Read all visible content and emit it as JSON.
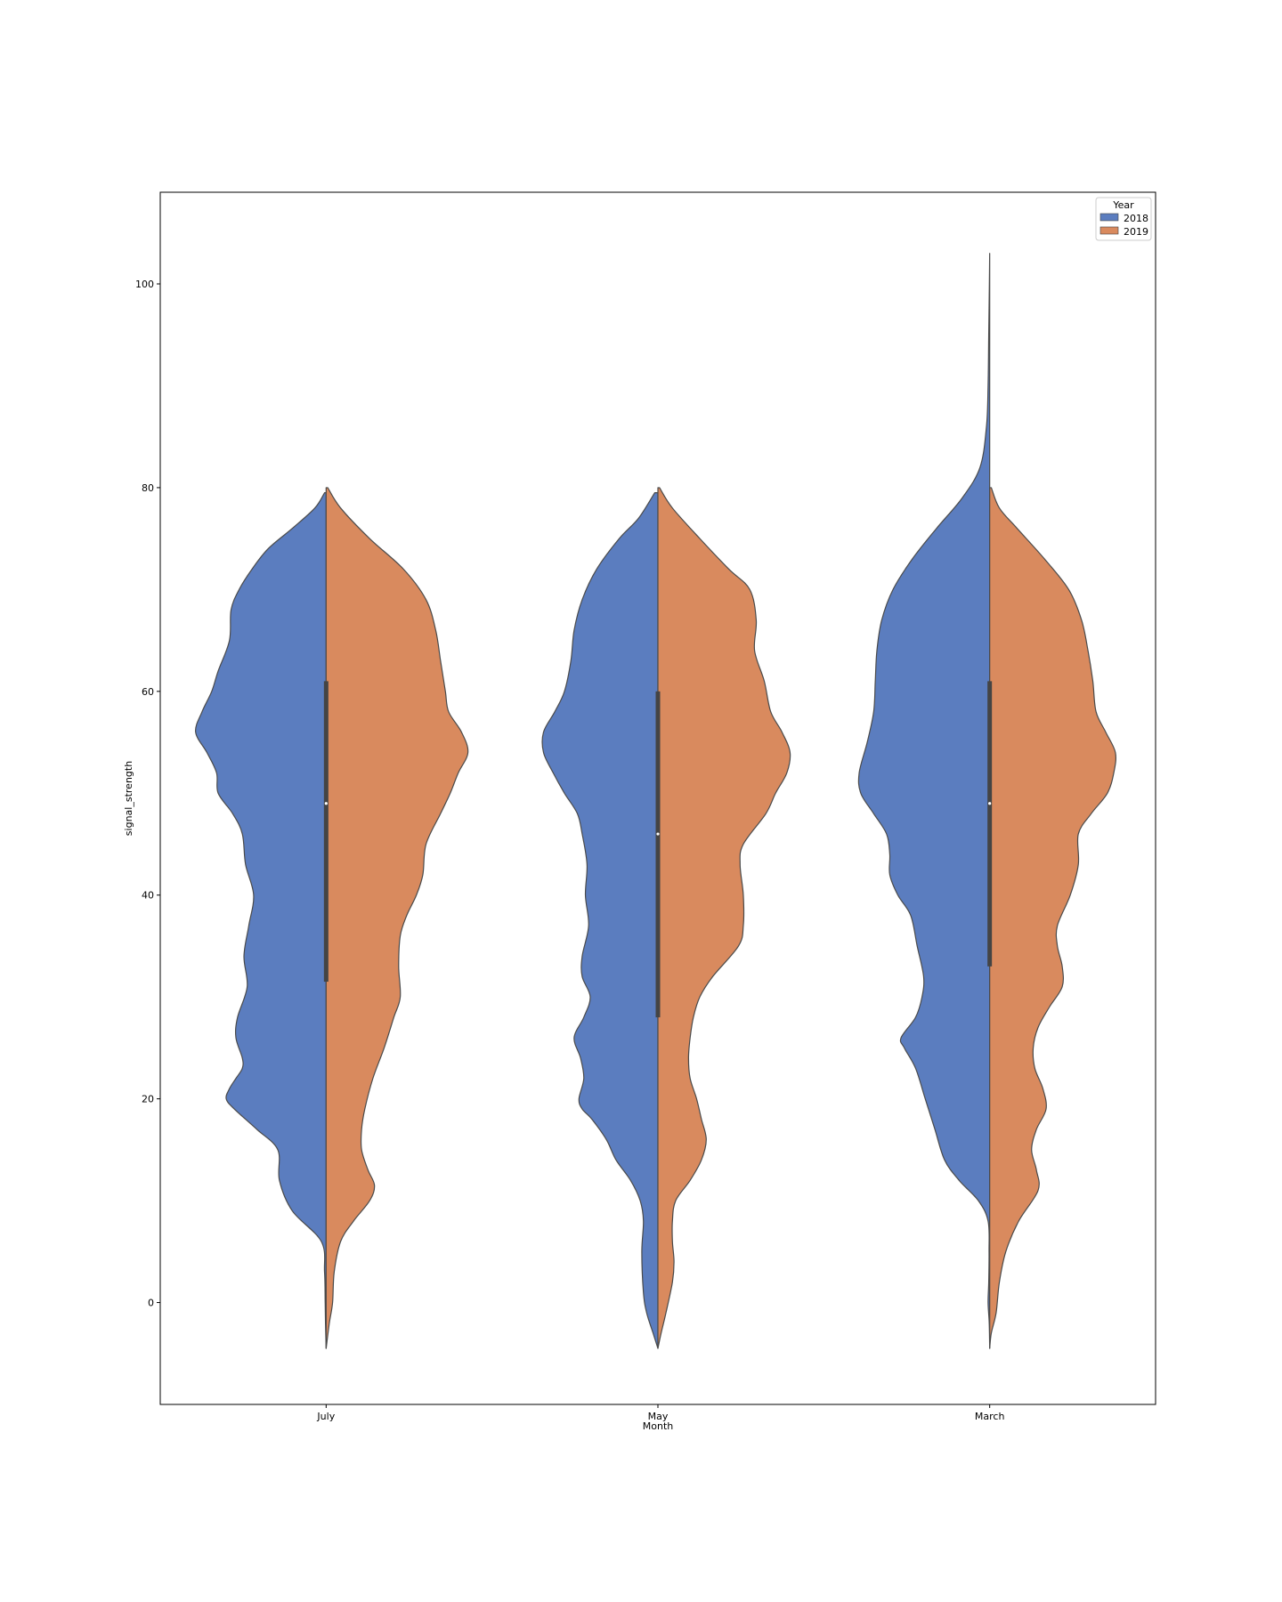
{
  "chart_data": {
    "type": "violin",
    "split": true,
    "xlabel": "Month",
    "ylabel": "signal_strength",
    "categories": [
      "July",
      "May",
      "March"
    ],
    "yticks": [
      0,
      20,
      40,
      60,
      80,
      100
    ],
    "ylim": [
      -10,
      109
    ],
    "grid": false,
    "legend": {
      "title": "Year",
      "placement": "top-right",
      "entries": [
        {
          "label": "2018",
          "color": "#5b7dbf"
        },
        {
          "label": "2019",
          "color": "#d98a5e"
        }
      ]
    },
    "series": [
      {
        "name": "2018",
        "color": "#5b7dbf"
      },
      {
        "name": "2019",
        "color": "#d98a5e"
      }
    ],
    "violins": [
      {
        "category": "July",
        "box": {
          "q1": 31.5,
          "median": 49,
          "q3": 61
        },
        "halves": {
          "2018": [
            [
              -4.5,
              0
            ],
            [
              -2,
              0.004
            ],
            [
              0,
              0.006
            ],
            [
              3,
              0.01
            ],
            [
              6,
              0.03
            ],
            [
              9,
              0.21
            ],
            [
              12,
              0.29
            ],
            [
              15,
              0.3
            ],
            [
              17,
              0.43
            ],
            [
              19,
              0.57
            ],
            [
              20,
              0.62
            ],
            [
              21,
              0.6
            ],
            [
              22,
              0.56
            ],
            [
              23,
              0.52
            ],
            [
              24,
              0.52
            ],
            [
              26,
              0.56
            ],
            [
              28,
              0.55
            ],
            [
              31,
              0.49
            ],
            [
              34,
              0.51
            ],
            [
              37,
              0.48
            ],
            [
              40,
              0.45
            ],
            [
              43,
              0.5
            ],
            [
              46,
              0.52
            ],
            [
              48,
              0.58
            ],
            [
              50,
              0.67
            ],
            [
              52,
              0.68
            ],
            [
              54,
              0.74
            ],
            [
              56,
              0.81
            ],
            [
              58,
              0.77
            ],
            [
              60,
              0.71
            ],
            [
              62,
              0.67
            ],
            [
              65,
              0.6
            ],
            [
              68,
              0.59
            ],
            [
              70,
              0.54
            ],
            [
              72,
              0.46
            ],
            [
              74,
              0.36
            ],
            [
              76,
              0.21
            ],
            [
              78,
              0.07
            ],
            [
              79.5,
              0.01
            ]
          ],
          "2019": [
            [
              -4.5,
              0
            ],
            [
              -2,
              0.02
            ],
            [
              0,
              0.04
            ],
            [
              3,
              0.05
            ],
            [
              6,
              0.09
            ],
            [
              8,
              0.17
            ],
            [
              10,
              0.27
            ],
            [
              11.5,
              0.3
            ],
            [
              13,
              0.26
            ],
            [
              15,
              0.22
            ],
            [
              17,
              0.22
            ],
            [
              19,
              0.24
            ],
            [
              22,
              0.29
            ],
            [
              25,
              0.36
            ],
            [
              28,
              0.42
            ],
            [
              30,
              0.46
            ],
            [
              33,
              0.45
            ],
            [
              36,
              0.46
            ],
            [
              38,
              0.5
            ],
            [
              40,
              0.56
            ],
            [
              42,
              0.6
            ],
            [
              45,
              0.62
            ],
            [
              48,
              0.71
            ],
            [
              50,
              0.77
            ],
            [
              52,
              0.82
            ],
            [
              54,
              0.88
            ],
            [
              56,
              0.84
            ],
            [
              58,
              0.76
            ],
            [
              60,
              0.74
            ],
            [
              63,
              0.71
            ],
            [
              66,
              0.68
            ],
            [
              69,
              0.62
            ],
            [
              72,
              0.48
            ],
            [
              75,
              0.27
            ],
            [
              78,
              0.09
            ],
            [
              80,
              0.01
            ]
          ]
        }
      },
      {
        "category": "May",
        "box": {
          "q1": 28,
          "median": 46,
          "q3": 60
        },
        "halves": {
          "2018": [
            [
              -4.5,
              0
            ],
            [
              -3,
              0.03
            ],
            [
              -1,
              0.07
            ],
            [
              1,
              0.09
            ],
            [
              5,
              0.1
            ],
            [
              8,
              0.09
            ],
            [
              10,
              0.11
            ],
            [
              12,
              0.17
            ],
            [
              14,
              0.26
            ],
            [
              16,
              0.32
            ],
            [
              18,
              0.41
            ],
            [
              19,
              0.47
            ],
            [
              20,
              0.49
            ],
            [
              22,
              0.46
            ],
            [
              24,
              0.48
            ],
            [
              26,
              0.52
            ],
            [
              28,
              0.46
            ],
            [
              30,
              0.42
            ],
            [
              32,
              0.47
            ],
            [
              34,
              0.47
            ],
            [
              37,
              0.43
            ],
            [
              40,
              0.45
            ],
            [
              43,
              0.44
            ],
            [
              46,
              0.47
            ],
            [
              48,
              0.5
            ],
            [
              50,
              0.58
            ],
            [
              52,
              0.65
            ],
            [
              54,
              0.71
            ],
            [
              56,
              0.71
            ],
            [
              58,
              0.64
            ],
            [
              60,
              0.58
            ],
            [
              63,
              0.54
            ],
            [
              66,
              0.52
            ],
            [
              69,
              0.47
            ],
            [
              72,
              0.38
            ],
            [
              75,
              0.24
            ],
            [
              77,
              0.12
            ],
            [
              79.5,
              0.02
            ]
          ],
          "2019": [
            [
              -4.5,
              0
            ],
            [
              -3,
              0.02
            ],
            [
              -1,
              0.05
            ],
            [
              2,
              0.09
            ],
            [
              4,
              0.1
            ],
            [
              6,
              0.09
            ],
            [
              8,
              0.09
            ],
            [
              10,
              0.11
            ],
            [
              12,
              0.2
            ],
            [
              14,
              0.27
            ],
            [
              16,
              0.3
            ],
            [
              18,
              0.27
            ],
            [
              20,
              0.24
            ],
            [
              22,
              0.2
            ],
            [
              24,
              0.19
            ],
            [
              26,
              0.2
            ],
            [
              28,
              0.22
            ],
            [
              30,
              0.26
            ],
            [
              32,
              0.34
            ],
            [
              35,
              0.5
            ],
            [
              37,
              0.53
            ],
            [
              40,
              0.53
            ],
            [
              43,
              0.51
            ],
            [
              45,
              0.53
            ],
            [
              48,
              0.67
            ],
            [
              50,
              0.73
            ],
            [
              52,
              0.8
            ],
            [
              54,
              0.82
            ],
            [
              56,
              0.77
            ],
            [
              58,
              0.7
            ],
            [
              61,
              0.66
            ],
            [
              64,
              0.6
            ],
            [
              67,
              0.61
            ],
            [
              70,
              0.57
            ],
            [
              72,
              0.44
            ],
            [
              75,
              0.26
            ],
            [
              78,
              0.09
            ],
            [
              80,
              0.01
            ]
          ]
        }
      },
      {
        "category": "March",
        "box": {
          "q1": 33,
          "median": 49,
          "q3": 61
        },
        "halves": {
          "2018": [
            [
              -4.5,
              0
            ],
            [
              -2,
              0.003
            ],
            [
              0,
              0.01
            ],
            [
              2,
              0.006
            ],
            [
              5,
              0.004
            ],
            [
              8,
              0.01
            ],
            [
              10,
              0.07
            ],
            [
              12,
              0.19
            ],
            [
              14,
              0.28
            ],
            [
              17,
              0.34
            ],
            [
              20,
              0.4
            ],
            [
              23,
              0.46
            ],
            [
              25,
              0.53
            ],
            [
              26,
              0.55
            ],
            [
              28,
              0.46
            ],
            [
              30,
              0.42
            ],
            [
              32,
              0.41
            ],
            [
              35,
              0.45
            ],
            [
              38,
              0.49
            ],
            [
              40,
              0.57
            ],
            [
              42,
              0.62
            ],
            [
              44,
              0.62
            ],
            [
              46,
              0.64
            ],
            [
              48,
              0.72
            ],
            [
              50,
              0.8
            ],
            [
              52,
              0.81
            ],
            [
              55,
              0.76
            ],
            [
              58,
              0.72
            ],
            [
              61,
              0.71
            ],
            [
              64,
              0.7
            ],
            [
              67,
              0.67
            ],
            [
              70,
              0.6
            ],
            [
              73,
              0.48
            ],
            [
              76,
              0.33
            ],
            [
              79,
              0.17
            ],
            [
              82,
              0.06
            ],
            [
              86,
              0.02
            ],
            [
              90,
              0.01
            ],
            [
              95,
              0.006
            ],
            [
              100,
              0.002
            ],
            [
              103,
              0
            ]
          ],
          "2019": [
            [
              -4.5,
              0
            ],
            [
              -3,
              0.01
            ],
            [
              -1,
              0.04
            ],
            [
              2,
              0.06
            ],
            [
              5,
              0.1
            ],
            [
              8,
              0.18
            ],
            [
              11,
              0.3
            ],
            [
              13,
              0.29
            ],
            [
              15,
              0.26
            ],
            [
              17,
              0.29
            ],
            [
              19,
              0.35
            ],
            [
              21,
              0.33
            ],
            [
              23,
              0.28
            ],
            [
              25,
              0.27
            ],
            [
              27,
              0.3
            ],
            [
              29,
              0.37
            ],
            [
              31,
              0.45
            ],
            [
              33,
              0.45
            ],
            [
              35,
              0.42
            ],
            [
              37,
              0.42
            ],
            [
              40,
              0.5
            ],
            [
              43,
              0.55
            ],
            [
              46,
              0.55
            ],
            [
              48,
              0.63
            ],
            [
              50,
              0.73
            ],
            [
              52,
              0.77
            ],
            [
              54,
              0.78
            ],
            [
              56,
              0.72
            ],
            [
              58,
              0.66
            ],
            [
              61,
              0.64
            ],
            [
              64,
              0.61
            ],
            [
              67,
              0.57
            ],
            [
              70,
              0.49
            ],
            [
              73,
              0.34
            ],
            [
              76,
              0.17
            ],
            [
              78,
              0.06
            ],
            [
              80,
              0.01
            ]
          ]
        }
      }
    ]
  }
}
